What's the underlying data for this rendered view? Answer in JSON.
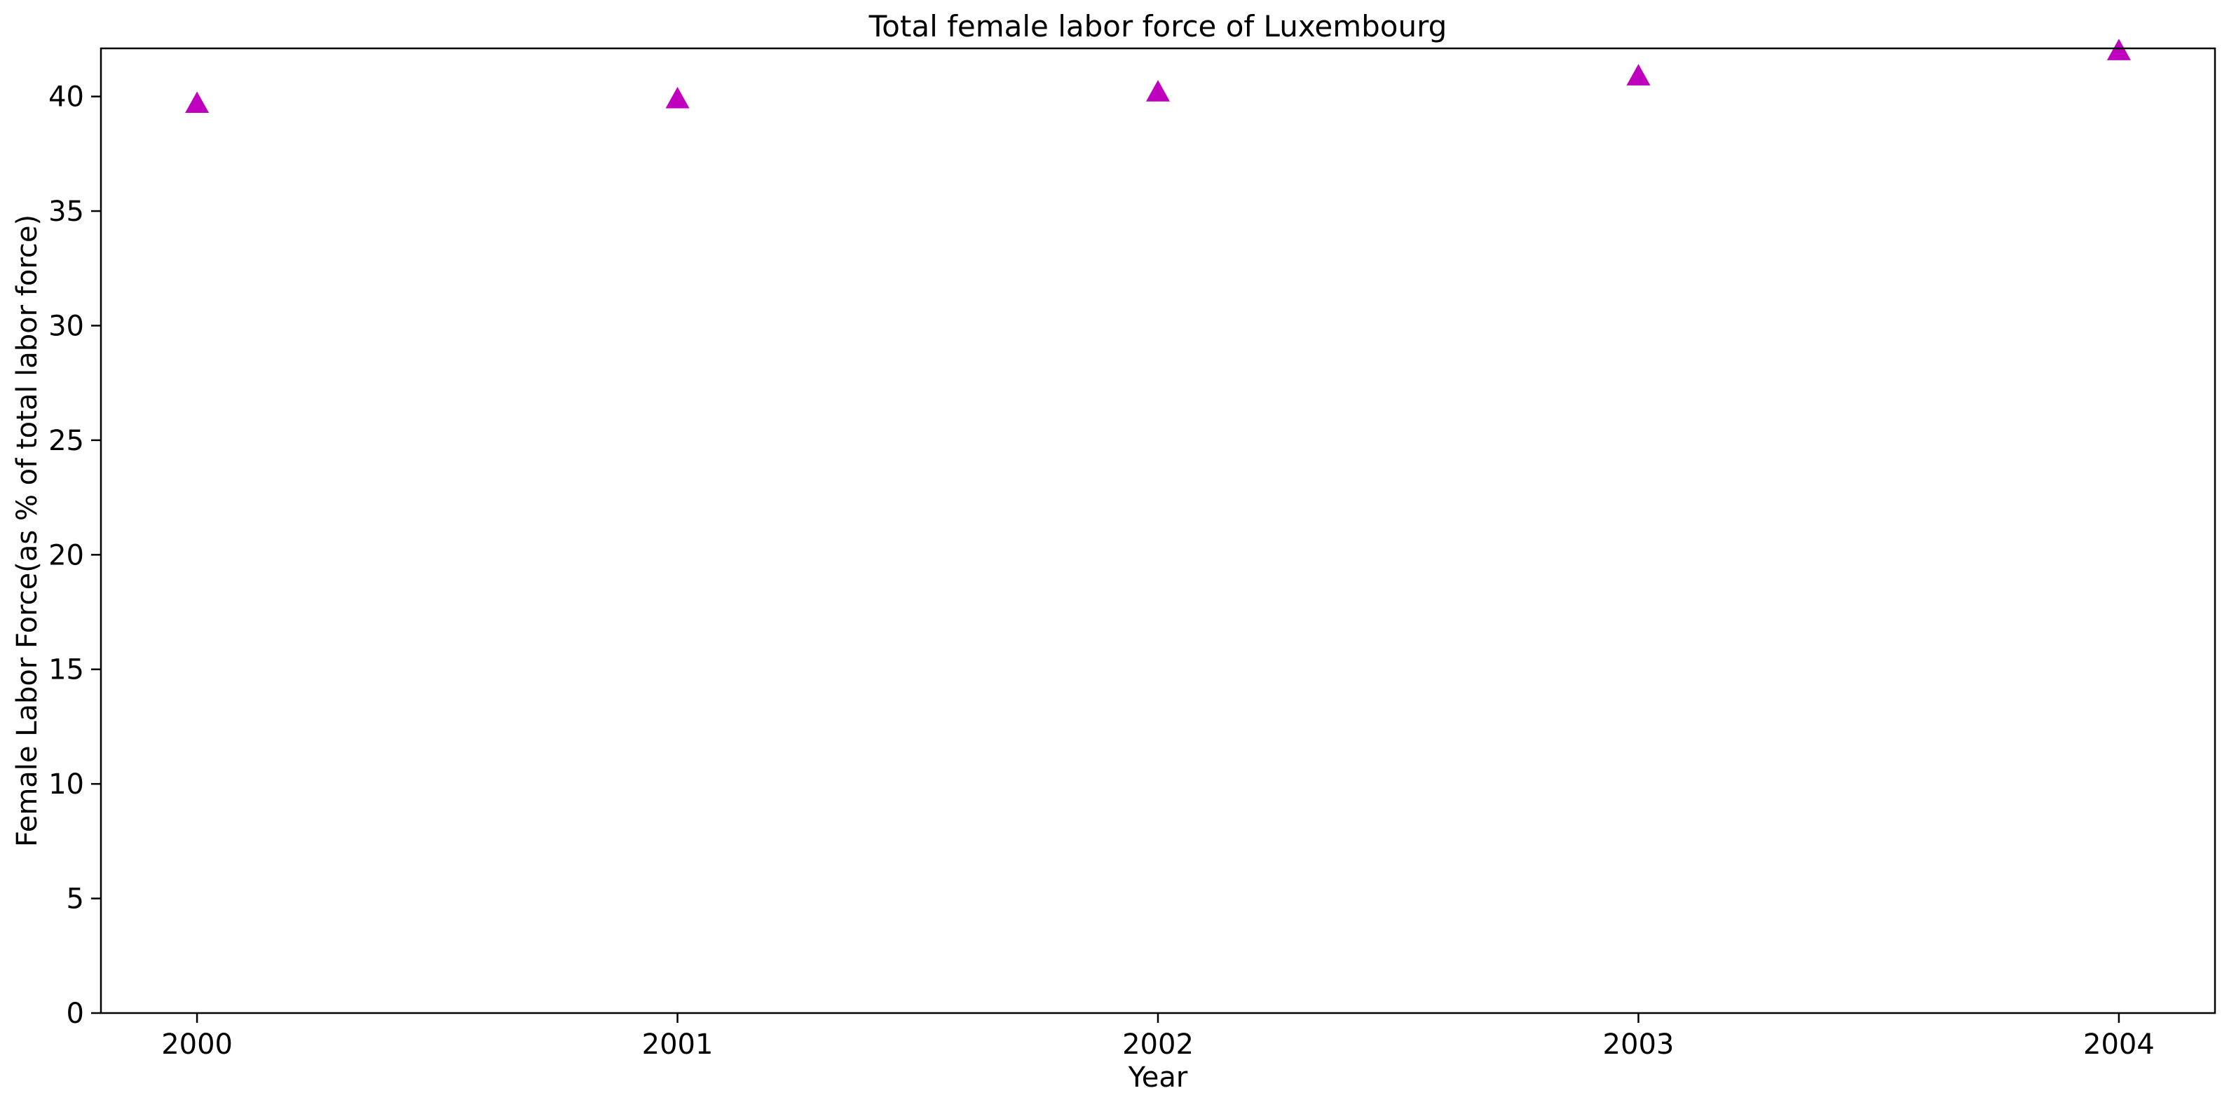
{
  "chart_data": {
    "type": "scatter",
    "title": "Total female labor force of Luxembourg",
    "xlabel": "Year",
    "ylabel": "Female Labor Force(as % of total labor force)",
    "x": [
      "2000",
      "2001",
      "2002",
      "2003",
      "2004"
    ],
    "series": [
      {
        "values": [
          39.7,
          39.9,
          40.2,
          40.9,
          42.0
        ]
      }
    ],
    "y_ticks": [
      0,
      5,
      10,
      15,
      20,
      25,
      30,
      35,
      40
    ],
    "ylim": [
      0,
      42.1
    ],
    "xlim": [
      1999.8,
      2004.2
    ],
    "grid": false,
    "marker": "triangle-up",
    "marker_color": "#bf00bf"
  }
}
